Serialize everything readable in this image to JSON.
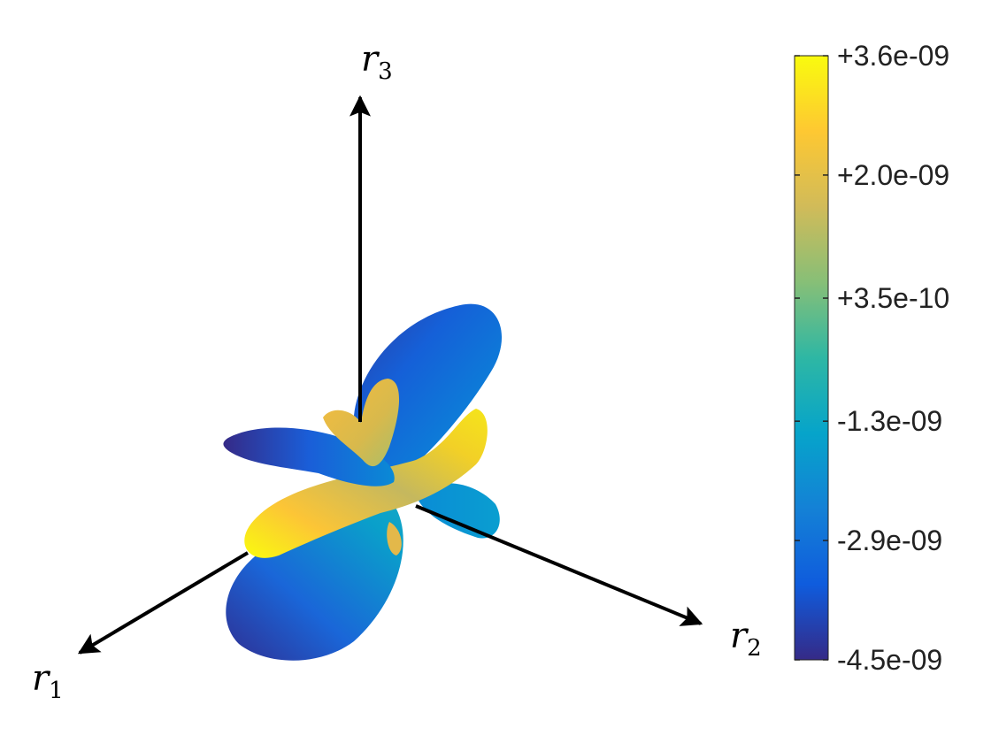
{
  "chart_data": {
    "type": "surface3d",
    "axes": [
      {
        "base": "r",
        "sub": "1"
      },
      {
        "base": "r",
        "sub": "2"
      },
      {
        "base": "r",
        "sub": "3"
      }
    ],
    "colorbar": {
      "min": -4.5e-09,
      "max": 3.6e-09,
      "ticks": [
        {
          "value": 3.6e-09,
          "label": "+3.6e-09"
        },
        {
          "value": 2e-09,
          "label": "+2.0e-09"
        },
        {
          "value": 3.5e-10,
          "label": "+3.5e-10"
        },
        {
          "value": -1.3e-09,
          "label": "-1.3e-09"
        },
        {
          "value": -2.9e-09,
          "label": "-2.9e-09"
        },
        {
          "value": -4.5e-09,
          "label": "-4.5e-09"
        }
      ],
      "colormap": "parula",
      "colormap_stops": [
        "#352a87",
        "#0f5cdd",
        "#1481d6",
        "#06a4ca",
        "#2eb7a4",
        "#87bf77",
        "#d1bb59",
        "#fec832",
        "#f9fb0e"
      ]
    }
  }
}
